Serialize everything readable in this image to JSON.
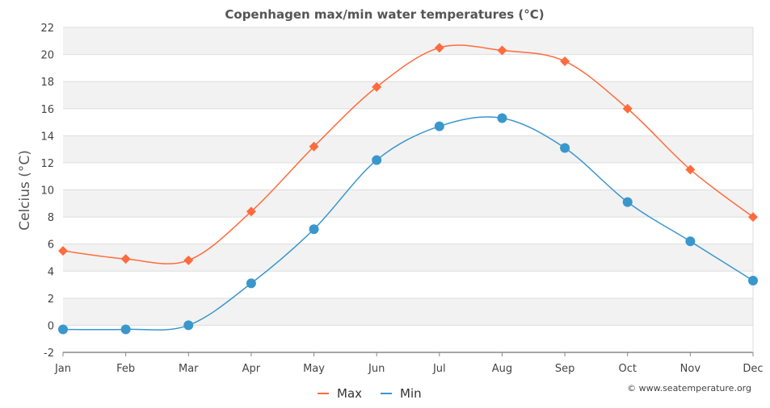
{
  "chart_data": {
    "type": "line",
    "title": "Copenhagen max/min water temperatures (°C)",
    "xlabel": "",
    "ylabel": "Celcius (°C)",
    "categories": [
      "Jan",
      "Feb",
      "Mar",
      "Apr",
      "May",
      "Jun",
      "Jul",
      "Aug",
      "Sep",
      "Oct",
      "Nov",
      "Dec"
    ],
    "ylim": [
      -2,
      22
    ],
    "yticks": [
      "-2",
      "0",
      "2",
      "4",
      "6",
      "8",
      "10",
      "12",
      "14",
      "16",
      "18",
      "20",
      "22"
    ],
    "series": [
      {
        "name": "Max",
        "color": "#ff6b3d",
        "marker": "diamond",
        "values": [
          5.5,
          4.9,
          4.8,
          8.4,
          13.2,
          17.6,
          20.5,
          20.3,
          19.5,
          16.0,
          11.5,
          8.0
        ]
      },
      {
        "name": "Min",
        "color": "#3a97cc",
        "marker": "circle",
        "values": [
          -0.3,
          -0.3,
          0.0,
          3.1,
          7.1,
          12.2,
          14.7,
          15.3,
          13.1,
          9.1,
          6.2,
          3.3
        ]
      }
    ],
    "legend": [
      "Max",
      "Min"
    ],
    "grid": true,
    "credit": "© www.seatemperature.org"
  }
}
